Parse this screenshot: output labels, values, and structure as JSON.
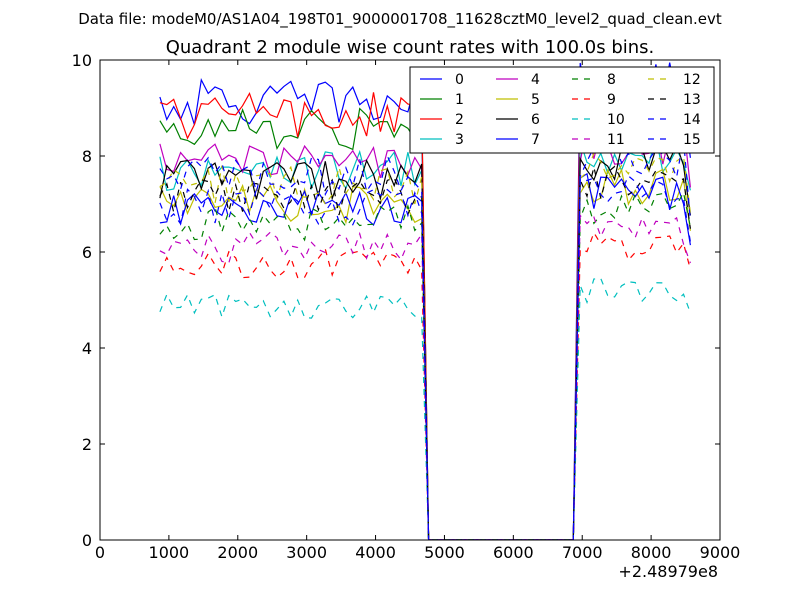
{
  "header": {
    "suptitle": "Data file: modeM0/AS1A04_198T01_9000001708_11628cztM0_level2_quad_clean.evt"
  },
  "chart_data": {
    "type": "line",
    "title": "Quadrant 2 module wise count rates with 100.0s bins.",
    "xlabel": "",
    "ylabel": "",
    "x_offset_label": "+2.48979e8",
    "xlim": [
      0,
      9000
    ],
    "ylim": [
      0,
      10
    ],
    "x_ticks": [
      0,
      1000,
      2000,
      3000,
      4000,
      5000,
      6000,
      7000,
      8000,
      9000
    ],
    "x_tick_labels": [
      "0",
      "1000",
      "2000",
      "3000",
      "4000",
      "5000",
      "6000",
      "7000",
      "8000",
      "9000"
    ],
    "y_ticks": [
      0,
      2,
      4,
      6,
      8,
      10
    ],
    "y_tick_labels": [
      "0",
      "2",
      "4",
      "6",
      "8",
      "10"
    ],
    "legend_position": "top-right",
    "x": [
      870,
      970,
      1070,
      1170,
      1270,
      1370,
      1470,
      1570,
      1670,
      1770,
      1870,
      1970,
      2070,
      2170,
      2270,
      2370,
      2470,
      2570,
      2670,
      2770,
      2870,
      2970,
      3070,
      3170,
      3270,
      3370,
      3470,
      3570,
      3670,
      3770,
      3870,
      3970,
      4070,
      4170,
      4270,
      4370,
      4470,
      4570,
      4670,
      4770,
      4870,
      4970,
      5070,
      5170,
      5270,
      5370,
      5470,
      5570,
      5670,
      5770,
      5870,
      5970,
      6070,
      6170,
      6270,
      6370,
      6470,
      6570,
      6670,
      6770,
      6870,
      6970,
      7070,
      7170,
      7270,
      7370,
      7470,
      7570,
      7670,
      7770,
      7870,
      7970,
      8070,
      8170,
      8270,
      8370,
      8470,
      8570
    ],
    "series": [
      {
        "name": "0",
        "color": "#0000ff",
        "dash": "solid",
        "level": 9.1
      },
      {
        "name": "1",
        "color": "#008000",
        "dash": "solid",
        "level": 8.55
      },
      {
        "name": "2",
        "color": "#ff0000",
        "dash": "solid",
        "level": 8.85
      },
      {
        "name": "3",
        "color": "#00bfbf",
        "dash": "solid",
        "level": 7.7
      },
      {
        "name": "4",
        "color": "#bf00bf",
        "dash": "solid",
        "level": 7.9
      },
      {
        "name": "5",
        "color": "#bfbf00",
        "dash": "solid",
        "level": 7.0
      },
      {
        "name": "6",
        "color": "#000000",
        "dash": "solid",
        "level": 7.5
      },
      {
        "name": "7",
        "color": "#0000ff",
        "dash": "solid",
        "level": 6.9
      },
      {
        "name": "8",
        "color": "#008000",
        "dash": "dashed",
        "level": 6.6
      },
      {
        "name": "9",
        "color": "#ff0000",
        "dash": "dashed",
        "level": 5.75
      },
      {
        "name": "10",
        "color": "#00bfbf",
        "dash": "dashed",
        "level": 4.85
      },
      {
        "name": "11",
        "color": "#bf00bf",
        "dash": "dashed",
        "level": 6.1
      },
      {
        "name": "12",
        "color": "#bfbf00",
        "dash": "dashed",
        "level": 7.4
      },
      {
        "name": "13",
        "color": "#000000",
        "dash": "dashed",
        "level": 7.15
      },
      {
        "name": "14",
        "color": "#0000ff",
        "dash": "dashed",
        "level": 6.95
      },
      {
        "name": "15",
        "color": "#0000ff",
        "dash": "dashed",
        "level": 7.6
      }
    ]
  }
}
